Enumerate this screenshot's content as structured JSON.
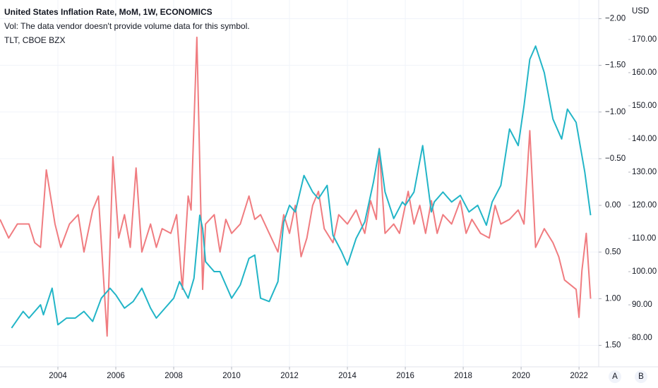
{
  "chart_data": {
    "type": "line",
    "volume_note": "Vol: The data vendor doesn't provide volume data for this symbol.",
    "currency_label": "USD",
    "scale_buttons": [
      "A",
      "B"
    ],
    "xlim": [
      2002,
      2022.68
    ],
    "xticks": [
      2004,
      2006,
      2008,
      2010,
      2012,
      2014,
      2016,
      2018,
      2020,
      2022
    ],
    "ylim": [
      1.73,
      -2.2
    ],
    "yticks": [
      {
        "value": -2,
        "label": "−2.00"
      },
      {
        "value": -1.5,
        "label": "−1.50"
      },
      {
        "value": -1,
        "label": "−1.00"
      },
      {
        "value": -0.5,
        "label": "−0.50"
      },
      {
        "value": 0,
        "label": "0.00"
      },
      {
        "value": 0.5,
        "label": "0.50"
      },
      {
        "value": 1,
        "label": "1.00"
      },
      {
        "value": 1.5,
        "label": "1.50"
      }
    ],
    "y2lim": [
      71.3,
      181.9
    ],
    "y2ticks": [
      {
        "value": 80,
        "label": "80.00"
      },
      {
        "value": 90,
        "label": "90.00"
      },
      {
        "value": 100,
        "label": "100.00"
      },
      {
        "value": 110,
        "label": "110.00"
      },
      {
        "value": 120,
        "label": "120.00"
      },
      {
        "value": 130,
        "label": "130.00"
      },
      {
        "value": 140,
        "label": "140.00"
      },
      {
        "value": 150,
        "label": "150.00"
      },
      {
        "value": 160,
        "label": "160.00"
      },
      {
        "value": 170,
        "label": "170.00"
      }
    ],
    "grid": true,
    "series": [
      {
        "name": "United States Inflation Rate, MoM, 1W, ECONOMICS",
        "color": "#f07c80",
        "axis": "y",
        "x": [
          2002.0,
          2002.3,
          2002.6,
          2003.0,
          2003.2,
          2003.4,
          2003.6,
          2003.9,
          2004.1,
          2004.4,
          2004.7,
          2004.9,
          2005.2,
          2005.4,
          2005.6,
          2005.7,
          2005.9,
          2006.1,
          2006.3,
          2006.5,
          2006.7,
          2006.9,
          2007.2,
          2007.4,
          2007.6,
          2007.9,
          2008.1,
          2008.3,
          2008.5,
          2008.6,
          2008.8,
          2009.0,
          2009.1,
          2009.4,
          2009.6,
          2009.8,
          2010.0,
          2010.3,
          2010.6,
          2010.8,
          2011.0,
          2011.3,
          2011.6,
          2011.8,
          2012.0,
          2012.2,
          2012.4,
          2012.6,
          2012.8,
          2013.0,
          2013.2,
          2013.5,
          2013.7,
          2014.0,
          2014.3,
          2014.6,
          2014.8,
          2015.0,
          2015.1,
          2015.3,
          2015.6,
          2015.8,
          2016.1,
          2016.3,
          2016.5,
          2016.7,
          2016.9,
          2017.1,
          2017.3,
          2017.6,
          2017.9,
          2018.1,
          2018.3,
          2018.6,
          2018.9,
          2019.1,
          2019.3,
          2019.6,
          2019.9,
          2020.1,
          2020.3,
          2020.5,
          2020.8,
          2021.1,
          2021.3,
          2021.5,
          2021.7,
          2021.9,
          2022.0,
          2022.1,
          2022.25,
          2022.4
        ],
        "values": [
          0.15,
          0.35,
          0.2,
          0.2,
          0.4,
          0.45,
          -0.38,
          0.2,
          0.45,
          0.2,
          0.1,
          0.5,
          0.05,
          -0.1,
          0.9,
          1.4,
          -0.52,
          0.35,
          0.1,
          0.45,
          -0.4,
          0.5,
          0.2,
          0.45,
          0.25,
          0.3,
          0.1,
          0.9,
          -0.1,
          0.05,
          -1.8,
          0.9,
          0.2,
          0.1,
          0.5,
          0.15,
          0.3,
          0.2,
          -0.1,
          0.15,
          0.1,
          0.3,
          0.5,
          0.1,
          0.3,
          0.0,
          0.55,
          0.35,
          0.0,
          -0.15,
          0.25,
          0.4,
          0.1,
          0.2,
          0.05,
          0.3,
          -0.05,
          0.15,
          -0.61,
          0.3,
          0.2,
          0.3,
          -0.15,
          0.2,
          0.0,
          0.3,
          -0.05,
          0.3,
          0.1,
          0.2,
          -0.05,
          0.3,
          0.15,
          0.3,
          0.35,
          0.0,
          0.2,
          0.15,
          0.05,
          0.2,
          -0.8,
          0.45,
          0.25,
          0.4,
          0.55,
          0.8,
          0.85,
          0.9,
          1.2,
          0.7,
          0.3,
          1.0
        ]
      },
      {
        "name": "TLT, CBOE BZX",
        "color": "#22b5c7",
        "axis": "y2",
        "x": [
          2002.4,
          2002.8,
          2003.0,
          2003.4,
          2003.5,
          2003.8,
          2004.0,
          2004.3,
          2004.6,
          2004.9,
          2005.2,
          2005.5,
          2005.8,
          2006.0,
          2006.3,
          2006.6,
          2006.9,
          2007.2,
          2007.4,
          2007.7,
          2008.0,
          2008.2,
          2008.5,
          2008.7,
          2008.9,
          2009.0,
          2009.1,
          2009.4,
          2009.6,
          2009.8,
          2010.0,
          2010.3,
          2010.6,
          2010.8,
          2011.0,
          2011.3,
          2011.6,
          2011.8,
          2012.0,
          2012.2,
          2012.5,
          2012.8,
          2013.0,
          2013.3,
          2013.5,
          2013.8,
          2014.0,
          2014.3,
          2014.6,
          2014.9,
          2015.1,
          2015.3,
          2015.6,
          2015.9,
          2016.0,
          2016.3,
          2016.6,
          2016.9,
          2017.0,
          2017.3,
          2017.6,
          2017.9,
          2018.2,
          2018.5,
          2018.8,
          2019.0,
          2019.3,
          2019.6,
          2019.9,
          2020.1,
          2020.3,
          2020.5,
          2020.8,
          2021.1,
          2021.4,
          2021.6,
          2021.9,
          2022.0,
          2022.2,
          2022.4
        ],
        "values": [
          83,
          88,
          86,
          90,
          87,
          95,
          84,
          86,
          86,
          88,
          85,
          92,
          95,
          93,
          89,
          91,
          95,
          89,
          86,
          89,
          92,
          97,
          92,
          98,
          117,
          113,
          103,
          100,
          100,
          96,
          92,
          96,
          104,
          105,
          92,
          91,
          97,
          115,
          120,
          118,
          129,
          124,
          122,
          126,
          111,
          106,
          102,
          110,
          115,
          127,
          137,
          124,
          116,
          121,
          120,
          124,
          138,
          118,
          121,
          124,
          121,
          123,
          118,
          120,
          114,
          121,
          126,
          143,
          138,
          150,
          164,
          168,
          160,
          146,
          140,
          149,
          145,
          140,
          130,
          117
        ]
      }
    ]
  }
}
